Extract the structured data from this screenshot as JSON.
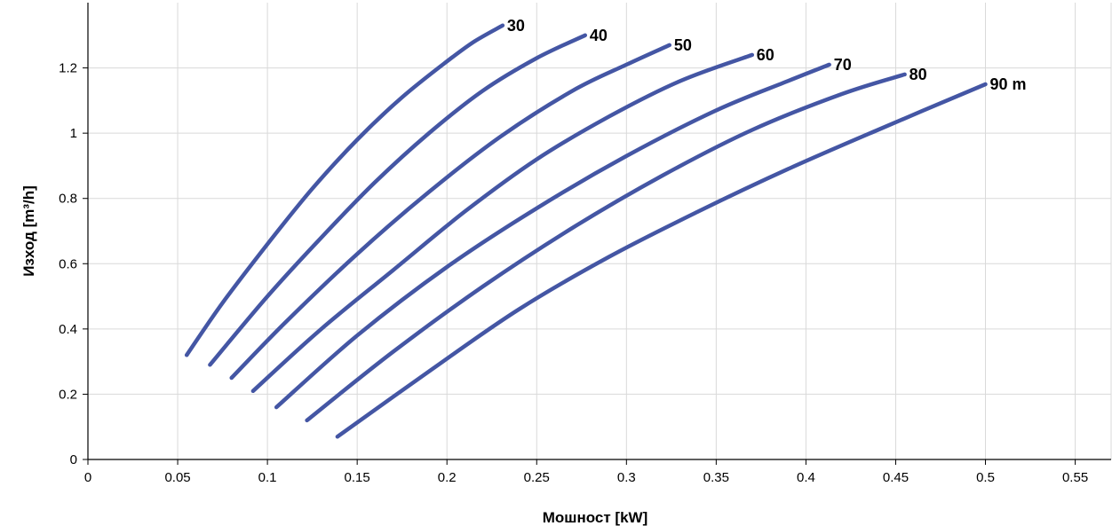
{
  "chart_data": {
    "type": "line",
    "xlabel": "Мошност [kW]",
    "ylabel": "Изход  [m³/h]",
    "xlim": [
      0,
      0.57
    ],
    "ylim": [
      0,
      1.4
    ],
    "xticks": [
      "0",
      "0.05",
      "0.1",
      "0.15",
      "0.2",
      "0.25",
      "0.3",
      "0.35",
      "0.4",
      "0.45",
      "0.5",
      "0.55"
    ],
    "yticks": [
      "0",
      "0.2",
      "0.4",
      "0.6",
      "0.8",
      "1",
      "1.2"
    ],
    "grid": true,
    "line_color": "#4456a4",
    "series": [
      {
        "name": "30",
        "x": [
          0.055,
          0.075,
          0.1,
          0.125,
          0.15,
          0.175,
          0.2,
          0.215,
          0.231
        ],
        "y": [
          0.32,
          0.48,
          0.66,
          0.83,
          0.98,
          1.11,
          1.22,
          1.28,
          1.33
        ]
      },
      {
        "name": "40",
        "x": [
          0.068,
          0.1,
          0.13,
          0.16,
          0.19,
          0.22,
          0.25,
          0.277
        ],
        "y": [
          0.29,
          0.5,
          0.68,
          0.85,
          1.0,
          1.13,
          1.23,
          1.3
        ]
      },
      {
        "name": "50",
        "x": [
          0.08,
          0.11,
          0.15,
          0.19,
          0.23,
          0.27,
          0.3,
          0.324
        ],
        "y": [
          0.25,
          0.42,
          0.63,
          0.82,
          0.99,
          1.13,
          1.21,
          1.27
        ]
      },
      {
        "name": "60",
        "x": [
          0.092,
          0.13,
          0.17,
          0.21,
          0.25,
          0.29,
          0.33,
          0.37
        ],
        "y": [
          0.21,
          0.4,
          0.58,
          0.76,
          0.92,
          1.05,
          1.16,
          1.24
        ]
      },
      {
        "name": "70",
        "x": [
          0.105,
          0.15,
          0.2,
          0.25,
          0.3,
          0.35,
          0.39,
          0.413
        ],
        "y": [
          0.16,
          0.38,
          0.59,
          0.77,
          0.93,
          1.07,
          1.16,
          1.21
        ]
      },
      {
        "name": "80",
        "x": [
          0.122,
          0.17,
          0.22,
          0.27,
          0.32,
          0.37,
          0.42,
          0.455
        ],
        "y": [
          0.12,
          0.33,
          0.53,
          0.71,
          0.87,
          1.01,
          1.12,
          1.18
        ]
      },
      {
        "name": "90 m",
        "x": [
          0.139,
          0.19,
          0.24,
          0.29,
          0.34,
          0.39,
          0.44,
          0.5
        ],
        "y": [
          0.07,
          0.27,
          0.46,
          0.62,
          0.76,
          0.89,
          1.01,
          1.15
        ]
      }
    ]
  }
}
